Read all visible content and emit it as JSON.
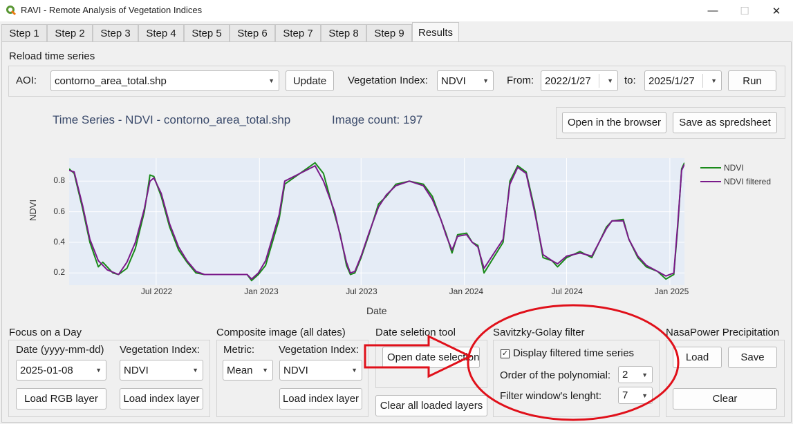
{
  "window": {
    "title": "RAVI - Remote Analysis of Vegetation Indices",
    "minimize": "—",
    "maximize": "☐",
    "close": "✕"
  },
  "tabs": [
    "Step 1",
    "Step 2",
    "Step 3",
    "Step 4",
    "Step 5",
    "Step 6",
    "Step 7",
    "Step 8",
    "Step 9",
    "Results"
  ],
  "active_tab": "Results",
  "reload": {
    "title": "Reload time series",
    "aoi_label": "AOI:",
    "aoi_value": "contorno_area_total.shp",
    "update_label": "Update",
    "vi_label": "Vegetation Index:",
    "vi_value": "NDVI",
    "from_label": "From:",
    "from_value": "2022/1/27",
    "to_label": "to:",
    "to_value": "2025/1/27",
    "run_label": "Run"
  },
  "chart_header": {
    "title": "Time Series - NDVI - contorno_area_total.shp",
    "image_count": "Image count: 197",
    "open_browser": "Open in the browser",
    "save_spreadsheet": "Save as spredsheet"
  },
  "chart_data": {
    "type": "line",
    "xlabel": "Date",
    "ylabel": "NDVI",
    "x_ticks": [
      "Jul 2022",
      "Jan 2023",
      "Jul 2023",
      "Jan 2024",
      "Jul 2024",
      "Jan 2025"
    ],
    "y_ticks": [
      "0.2",
      "0.4",
      "0.6",
      "0.8"
    ],
    "ylim": [
      0.12,
      0.95
    ],
    "xlim": [
      "2022-01-27",
      "2025-01-27"
    ],
    "grid": true,
    "legend_position": "top-right",
    "series": [
      {
        "name": "NDVI",
        "color": "#1a8a1a",
        "points": [
          [
            "2022-01-27",
            0.88
          ],
          [
            "2022-02-05",
            0.85
          ],
          [
            "2022-02-20",
            0.62
          ],
          [
            "2022-03-05",
            0.4
          ],
          [
            "2022-03-20",
            0.24
          ],
          [
            "2022-03-28",
            0.27
          ],
          [
            "2022-04-15",
            0.2
          ],
          [
            "2022-04-25",
            0.19
          ],
          [
            "2022-05-10",
            0.23
          ],
          [
            "2022-05-25",
            0.36
          ],
          [
            "2022-06-10",
            0.6
          ],
          [
            "2022-06-20",
            0.84
          ],
          [
            "2022-06-27",
            0.83
          ],
          [
            "2022-07-10",
            0.7
          ],
          [
            "2022-07-25",
            0.5
          ],
          [
            "2022-08-10",
            0.35
          ],
          [
            "2022-08-25",
            0.27
          ],
          [
            "2022-09-10",
            0.2
          ],
          [
            "2022-09-25",
            0.19
          ],
          [
            "2022-11-15",
            0.19
          ],
          [
            "2022-12-10",
            0.19
          ],
          [
            "2022-12-18",
            0.15
          ],
          [
            "2022-12-30",
            0.19
          ],
          [
            "2023-01-12",
            0.25
          ],
          [
            "2023-02-05",
            0.55
          ],
          [
            "2023-02-15",
            0.78
          ],
          [
            "2023-04-10",
            0.92
          ],
          [
            "2023-04-25",
            0.85
          ],
          [
            "2023-05-15",
            0.58
          ],
          [
            "2023-05-25",
            0.45
          ],
          [
            "2023-06-05",
            0.25
          ],
          [
            "2023-06-12",
            0.19
          ],
          [
            "2023-06-20",
            0.2
          ],
          [
            "2023-07-01",
            0.3
          ],
          [
            "2023-07-15",
            0.45
          ],
          [
            "2023-08-01",
            0.65
          ],
          [
            "2023-08-15",
            0.7
          ],
          [
            "2023-09-01",
            0.78
          ],
          [
            "2023-09-25",
            0.8
          ],
          [
            "2023-10-20",
            0.78
          ],
          [
            "2023-11-05",
            0.7
          ],
          [
            "2023-11-20",
            0.55
          ],
          [
            "2023-11-30",
            0.45
          ],
          [
            "2023-12-10",
            0.33
          ],
          [
            "2023-12-20",
            0.45
          ],
          [
            "2024-01-05",
            0.46
          ],
          [
            "2024-01-15",
            0.4
          ],
          [
            "2024-01-25",
            0.38
          ],
          [
            "2024-02-05",
            0.2
          ],
          [
            "2024-03-10",
            0.4
          ],
          [
            "2024-03-22",
            0.8
          ],
          [
            "2024-04-05",
            0.9
          ],
          [
            "2024-04-20",
            0.86
          ],
          [
            "2024-05-05",
            0.62
          ],
          [
            "2024-05-20",
            0.3
          ],
          [
            "2024-06-05",
            0.28
          ],
          [
            "2024-06-15",
            0.24
          ],
          [
            "2024-07-01",
            0.3
          ],
          [
            "2024-07-25",
            0.34
          ],
          [
            "2024-08-15",
            0.3
          ],
          [
            "2024-09-10",
            0.5
          ],
          [
            "2024-09-20",
            0.54
          ],
          [
            "2024-10-10",
            0.55
          ],
          [
            "2024-10-20",
            0.42
          ],
          [
            "2024-11-05",
            0.3
          ],
          [
            "2024-11-20",
            0.24
          ],
          [
            "2024-12-10",
            0.21
          ],
          [
            "2024-12-25",
            0.16
          ],
          [
            "2025-01-08",
            0.19
          ],
          [
            "2025-01-15",
            0.5
          ],
          [
            "2025-01-22",
            0.88
          ],
          [
            "2025-01-27",
            0.92
          ]
        ]
      },
      {
        "name": "NDVI filtered",
        "color": "#7a1a8a",
        "points": [
          [
            "2022-01-27",
            0.87
          ],
          [
            "2022-02-05",
            0.86
          ],
          [
            "2022-02-20",
            0.64
          ],
          [
            "2022-03-05",
            0.42
          ],
          [
            "2022-03-20",
            0.28
          ],
          [
            "2022-04-05",
            0.22
          ],
          [
            "2022-04-25",
            0.19
          ],
          [
            "2022-05-10",
            0.27
          ],
          [
            "2022-05-25",
            0.4
          ],
          [
            "2022-06-10",
            0.62
          ],
          [
            "2022-06-20",
            0.8
          ],
          [
            "2022-06-27",
            0.82
          ],
          [
            "2022-07-10",
            0.72
          ],
          [
            "2022-07-25",
            0.52
          ],
          [
            "2022-08-10",
            0.37
          ],
          [
            "2022-08-25",
            0.28
          ],
          [
            "2022-09-10",
            0.21
          ],
          [
            "2022-09-25",
            0.19
          ],
          [
            "2022-11-15",
            0.19
          ],
          [
            "2022-12-10",
            0.19
          ],
          [
            "2022-12-18",
            0.16
          ],
          [
            "2022-12-30",
            0.2
          ],
          [
            "2023-01-12",
            0.28
          ],
          [
            "2023-02-05",
            0.58
          ],
          [
            "2023-02-15",
            0.8
          ],
          [
            "2023-04-10",
            0.9
          ],
          [
            "2023-04-25",
            0.8
          ],
          [
            "2023-05-15",
            0.6
          ],
          [
            "2023-05-25",
            0.44
          ],
          [
            "2023-06-05",
            0.27
          ],
          [
            "2023-06-12",
            0.2
          ],
          [
            "2023-06-20",
            0.21
          ],
          [
            "2023-07-01",
            0.31
          ],
          [
            "2023-07-15",
            0.46
          ],
          [
            "2023-08-01",
            0.63
          ],
          [
            "2023-08-15",
            0.71
          ],
          [
            "2023-09-01",
            0.77
          ],
          [
            "2023-09-25",
            0.8
          ],
          [
            "2023-10-20",
            0.77
          ],
          [
            "2023-11-05",
            0.68
          ],
          [
            "2023-11-20",
            0.55
          ],
          [
            "2023-11-30",
            0.44
          ],
          [
            "2023-12-10",
            0.35
          ],
          [
            "2023-12-20",
            0.44
          ],
          [
            "2024-01-05",
            0.45
          ],
          [
            "2024-01-15",
            0.4
          ],
          [
            "2024-01-25",
            0.37
          ],
          [
            "2024-02-05",
            0.23
          ],
          [
            "2024-03-10",
            0.42
          ],
          [
            "2024-03-22",
            0.78
          ],
          [
            "2024-04-05",
            0.89
          ],
          [
            "2024-04-20",
            0.85
          ],
          [
            "2024-05-05",
            0.6
          ],
          [
            "2024-05-20",
            0.32
          ],
          [
            "2024-06-05",
            0.28
          ],
          [
            "2024-06-15",
            0.26
          ],
          [
            "2024-07-01",
            0.31
          ],
          [
            "2024-07-25",
            0.33
          ],
          [
            "2024-08-15",
            0.31
          ],
          [
            "2024-09-10",
            0.49
          ],
          [
            "2024-09-20",
            0.54
          ],
          [
            "2024-10-10",
            0.54
          ],
          [
            "2024-10-20",
            0.42
          ],
          [
            "2024-11-05",
            0.31
          ],
          [
            "2024-11-20",
            0.25
          ],
          [
            "2024-12-10",
            0.21
          ],
          [
            "2024-12-25",
            0.18
          ],
          [
            "2025-01-08",
            0.2
          ],
          [
            "2025-01-15",
            0.52
          ],
          [
            "2025-01-22",
            0.87
          ],
          [
            "2025-01-27",
            0.91
          ]
        ]
      }
    ]
  },
  "focus_day": {
    "title": "Focus on a Day",
    "date_label": "Date (yyyy-mm-dd)",
    "date_value": "2025-01-08",
    "vi_label": "Vegetation Index:",
    "vi_value": "NDVI",
    "load_rgb": "Load RGB layer",
    "load_index": "Load index layer"
  },
  "composite": {
    "title": "Composite image (all dates)",
    "metric_label": "Metric:",
    "metric_value": "Mean",
    "vi_label": "Vegetation Index:",
    "vi_value": "NDVI",
    "load_index": "Load index layer"
  },
  "date_tool": {
    "title": "Date seletion tool",
    "open_label": "Open date selection",
    "clear_label": "Clear all loaded layers"
  },
  "savitzky": {
    "title": "Savitzky-Golay filter",
    "checkbox_label": "Display filtered time series",
    "checked": true,
    "poly_label": "Order of the polynomial:",
    "poly_value": "2",
    "window_label": "Filter window's lenght:",
    "window_value": "7"
  },
  "nasa": {
    "title": "NasaPower Precipitation",
    "load_label": "Load",
    "save_label": "Save",
    "clear_label": "Clear"
  },
  "annotation_color": "#e0101a"
}
